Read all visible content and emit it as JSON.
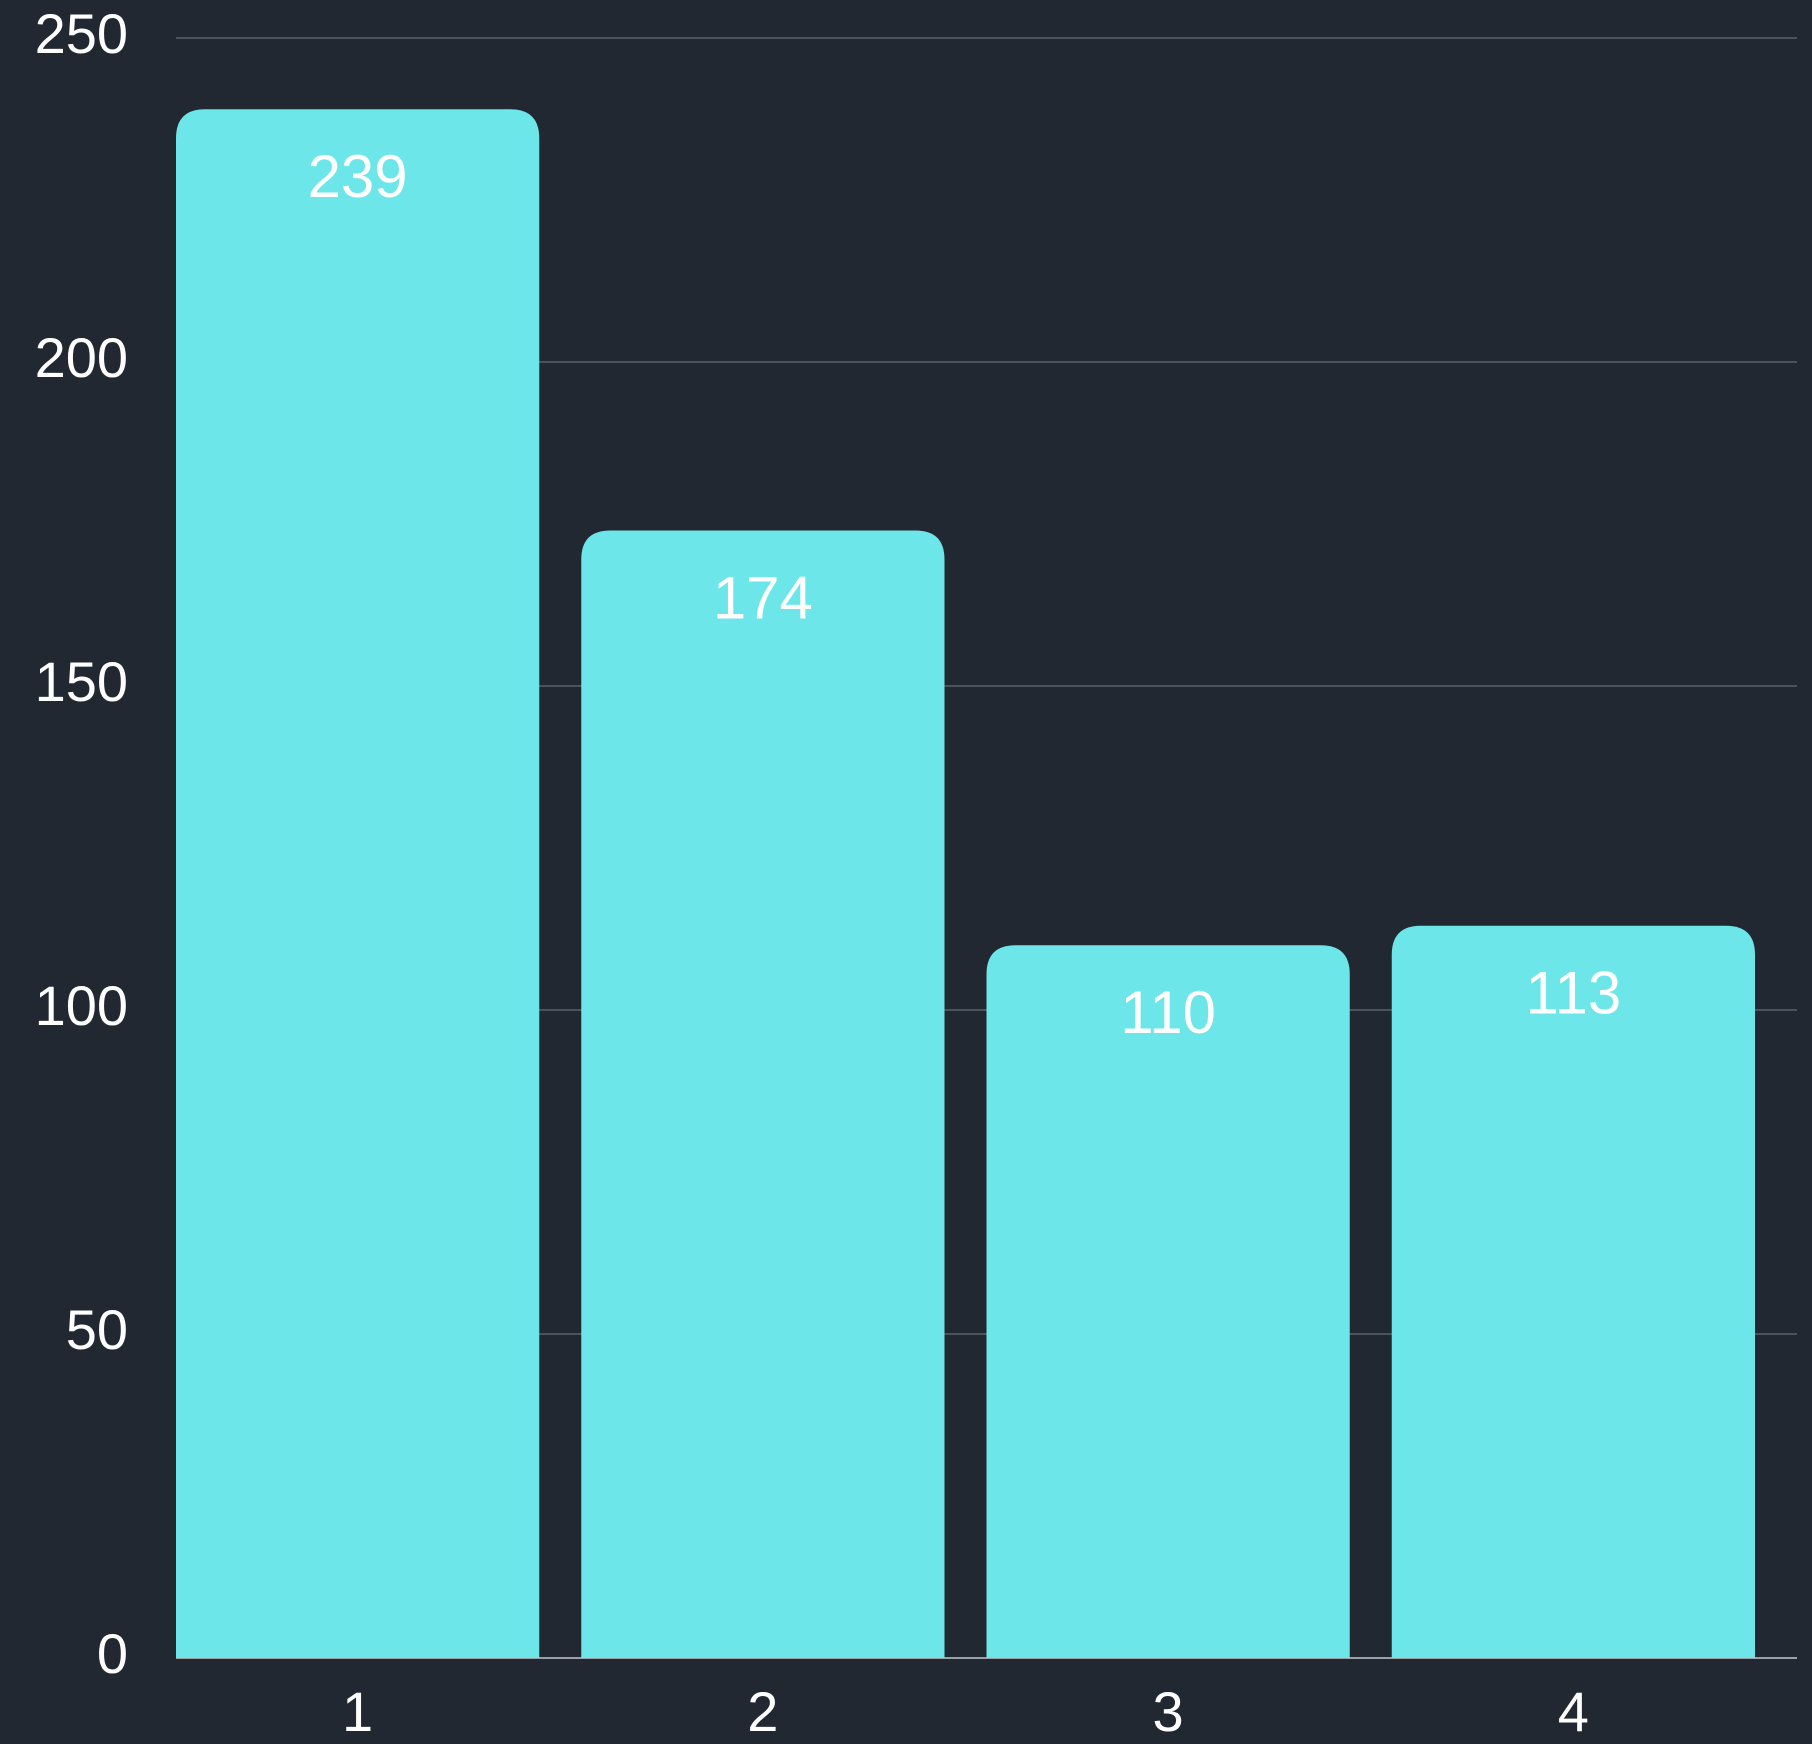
{
  "chart_data": {
    "type": "bar",
    "categories": [
      "1",
      "2",
      "3",
      "4"
    ],
    "values": [
      239,
      174,
      110,
      113
    ],
    "color": "#6ce6e8",
    "ylim": [
      0,
      250
    ],
    "yticks": [
      0,
      50,
      100,
      150,
      200,
      250
    ],
    "grid": true
  }
}
